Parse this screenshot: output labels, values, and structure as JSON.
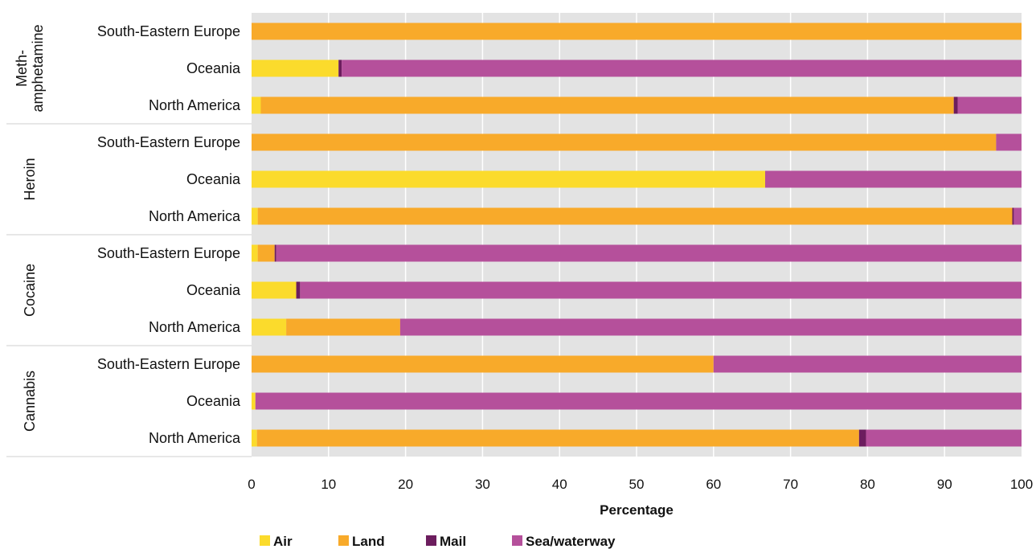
{
  "chart_data": {
    "type": "bar",
    "orientation": "horizontal",
    "stacked": true,
    "title": "",
    "xlabel": "Percentage",
    "ylabel": "",
    "xlim": [
      0,
      100
    ],
    "x_ticks": [
      "0",
      "10",
      "20",
      "30",
      "40",
      "50",
      "60",
      "70",
      "80",
      "90",
      "100"
    ],
    "grid": "vertical gridlines on grey background",
    "legend_position": "bottom",
    "groups": [
      {
        "label_lines": [
          "Meth-",
          "amphetamine"
        ],
        "categories": [
          "South-Eastern Europe",
          "Oceania",
          "North America"
        ]
      },
      {
        "label_lines": [
          "Heroin"
        ],
        "categories": [
          "South-Eastern Europe",
          "Oceania",
          "North America"
        ]
      },
      {
        "label_lines": [
          "Cocaine"
        ],
        "categories": [
          "South-Eastern Europe",
          "Oceania",
          "North America"
        ]
      },
      {
        "label_lines": [
          "Cannabis"
        ],
        "categories": [
          "South-Eastern Europe",
          "Oceania",
          "North America"
        ]
      }
    ],
    "series": [
      {
        "name": "Air",
        "color": "#FBDB2C",
        "values": [
          [
            0,
            11.3,
            1.2
          ],
          [
            0,
            66.7,
            0.8
          ],
          [
            0.8,
            5.8,
            4.5
          ],
          [
            0,
            0.5,
            0.7
          ]
        ]
      },
      {
        "name": "Land",
        "color": "#F8AA2A",
        "values": [
          [
            100,
            0,
            90.0
          ],
          [
            96.7,
            0,
            98.0
          ],
          [
            2.2,
            0,
            14.8
          ],
          [
            60.0,
            0,
            78.2
          ]
        ]
      },
      {
        "name": "Mail",
        "color": "#6C1D5E",
        "values": [
          [
            0,
            0.4,
            0.5
          ],
          [
            0,
            0,
            0.2
          ],
          [
            0.2,
            0.5,
            0
          ],
          [
            0,
            0,
            0.9
          ]
        ]
      },
      {
        "name": "Sea/waterway",
        "color": "#B5509B",
        "values": [
          [
            0,
            88.3,
            8.3
          ],
          [
            3.3,
            33.3,
            1.0
          ],
          [
            96.8,
            93.7,
            80.7
          ],
          [
            40.0,
            99.5,
            20.2
          ]
        ]
      }
    ]
  }
}
